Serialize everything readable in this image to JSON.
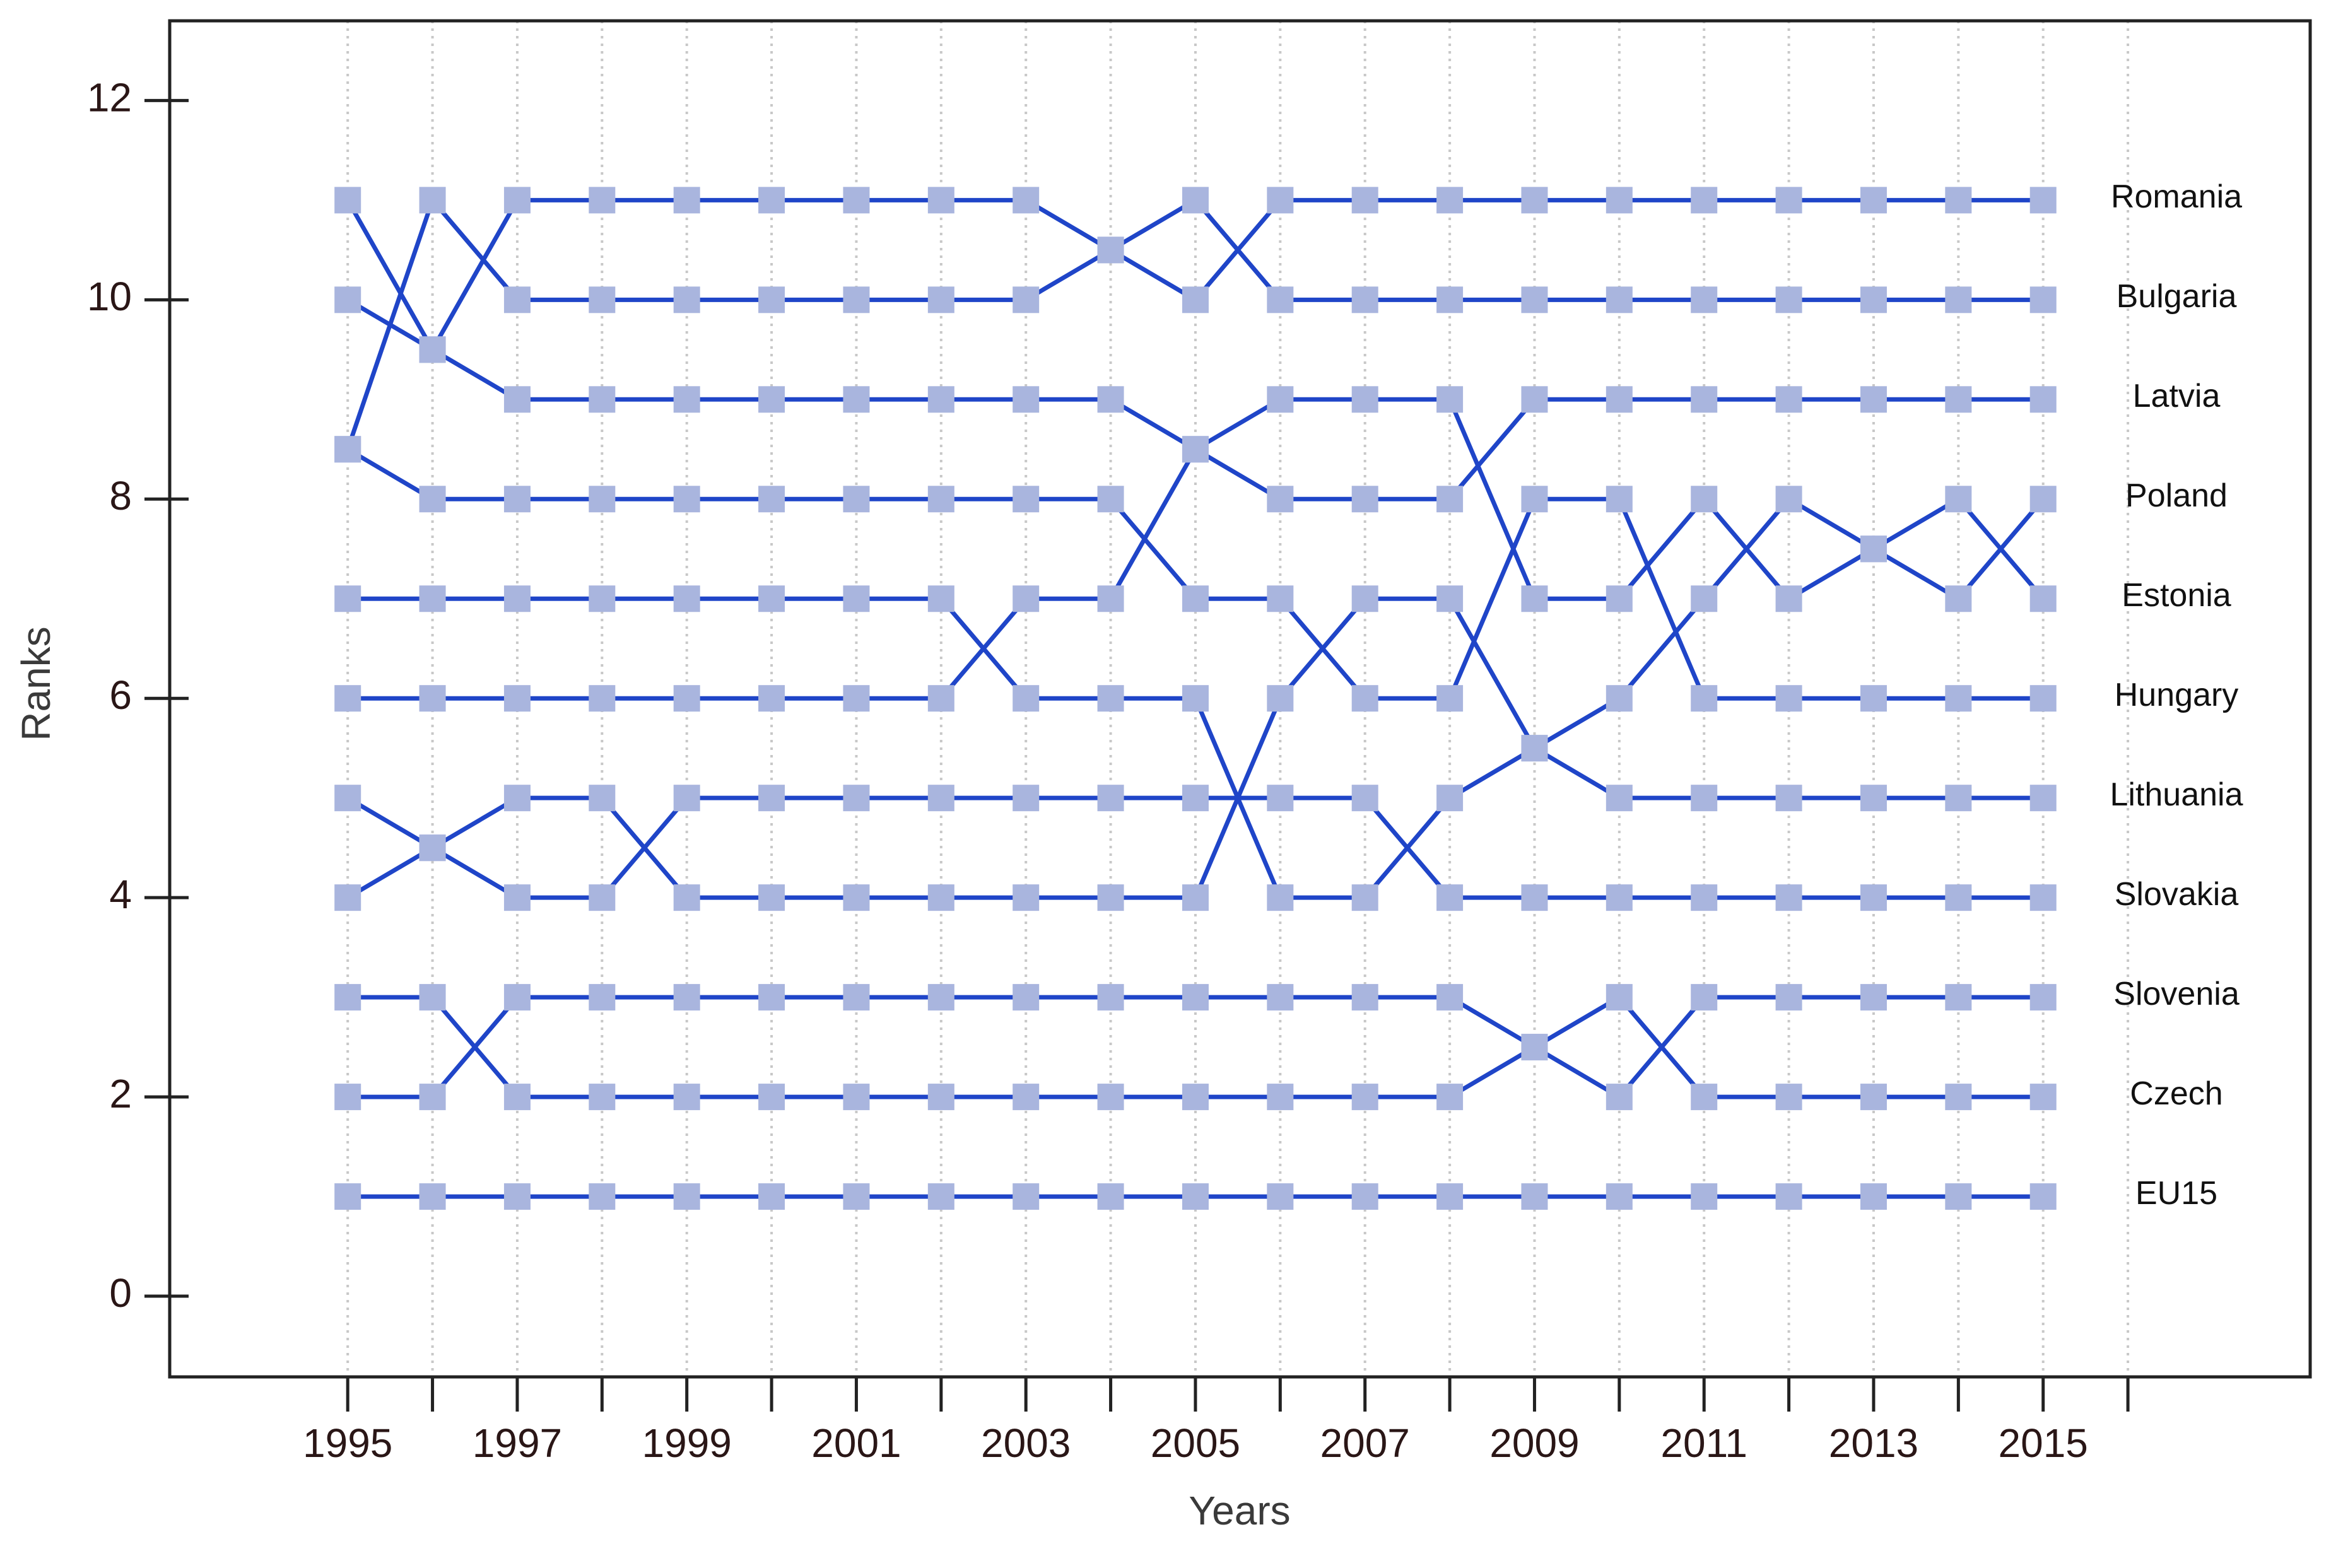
{
  "chart_data": {
    "type": "line",
    "x_label": "Years",
    "y_label": "Ranks",
    "x": [
      1995,
      1996,
      1997,
      1998,
      1999,
      2000,
      2001,
      2002,
      2003,
      2004,
      2005,
      2006,
      2007,
      2008,
      2009,
      2010,
      2011,
      2012,
      2013,
      2014,
      2015
    ],
    "xlim": [
      1992.9,
      2018.15
    ],
    "xticks": [
      1995,
      1997,
      1999,
      2001,
      2003,
      2005,
      2007,
      2009,
      2011,
      2013,
      2015
    ],
    "xminorticks": [
      1995,
      1996,
      1997,
      1998,
      1999,
      2000,
      2001,
      2002,
      2003,
      2004,
      2005,
      2006,
      2007,
      2008,
      2009,
      2010,
      2011,
      2012,
      2013,
      2014,
      2015,
      2016
    ],
    "ylim": [
      -0.81,
      12.8
    ],
    "yticks": [
      0,
      2,
      4,
      6,
      8,
      10,
      12
    ],
    "grid": true,
    "marker_color": "#a9b5de",
    "series": [
      {
        "name": "Romania",
        "color": "#1f45c8",
        "values": [
          11,
          9.5,
          11,
          11,
          11,
          11,
          11,
          11,
          11,
          10.5,
          10,
          11,
          11,
          11,
          11,
          11,
          11,
          11,
          11,
          11,
          11
        ]
      },
      {
        "name": "Bulgaria",
        "color": "#1f45c8",
        "values": [
          8.5,
          11,
          10,
          10,
          10,
          10,
          10,
          10,
          10,
          10.5,
          11,
          10,
          10,
          10,
          10,
          10,
          10,
          10,
          10,
          10,
          10
        ]
      },
      {
        "name": "Latvia",
        "color": "#1f45c8",
        "values": [
          10,
          9.5,
          9,
          9,
          9,
          9,
          9,
          9,
          9,
          9,
          8.5,
          8,
          8,
          8,
          9,
          9,
          9,
          9,
          9,
          9,
          9
        ]
      },
      {
        "name": "Poland",
        "color": "#1f45c8",
        "values": [
          7,
          7,
          7,
          7,
          7,
          7,
          7,
          7,
          6,
          6,
          6,
          4,
          4,
          5,
          5.5,
          6,
          7,
          8,
          7.5,
          7,
          8
        ]
      },
      {
        "name": "Estonia",
        "color": "#1f45c8",
        "values": [
          6,
          6,
          6,
          6,
          6,
          6,
          6,
          6,
          7,
          7,
          8.5,
          9,
          9,
          9,
          7,
          7,
          8,
          7,
          7.5,
          8,
          7
        ]
      },
      {
        "name": "Hungary",
        "color": "#1f45c8",
        "values": [
          8.5,
          8,
          8,
          8,
          8,
          8,
          8,
          8,
          8,
          8,
          7,
          7,
          6,
          6,
          8,
          8,
          6,
          6,
          6,
          6,
          6
        ]
      },
      {
        "name": "Lithuania",
        "color": "#1f45c8",
        "values": [
          5,
          4.5,
          5,
          5,
          4,
          4,
          4,
          4,
          4,
          4,
          4,
          6,
          7,
          7,
          5.5,
          5,
          5,
          5,
          5,
          5,
          5
        ]
      },
      {
        "name": "Slovakia",
        "color": "#1f45c8",
        "values": [
          4,
          4.5,
          4,
          4,
          5,
          5,
          5,
          5,
          5,
          5,
          5,
          5,
          5,
          4,
          4,
          4,
          4,
          4,
          4,
          4,
          4
        ]
      },
      {
        "name": "Slovenia",
        "color": "#1f45c8",
        "values": [
          3,
          3,
          2,
          2,
          2,
          2,
          2,
          2,
          2,
          2,
          2,
          2,
          2,
          2,
          2.5,
          2,
          3,
          3,
          3,
          3,
          3
        ]
      },
      {
        "name": "Czech",
        "color": "#1f45c8",
        "values": [
          2,
          2,
          3,
          3,
          3,
          3,
          3,
          3,
          3,
          3,
          3,
          3,
          3,
          3,
          2.5,
          3,
          2,
          2,
          2,
          2,
          2
        ]
      },
      {
        "name": "EU15",
        "color": "#1f45c8",
        "values": [
          1,
          1,
          1,
          1,
          1,
          1,
          1,
          1,
          1,
          1,
          1,
          1,
          1,
          1,
          1,
          1,
          1,
          1,
          1,
          1,
          1
        ]
      }
    ]
  }
}
